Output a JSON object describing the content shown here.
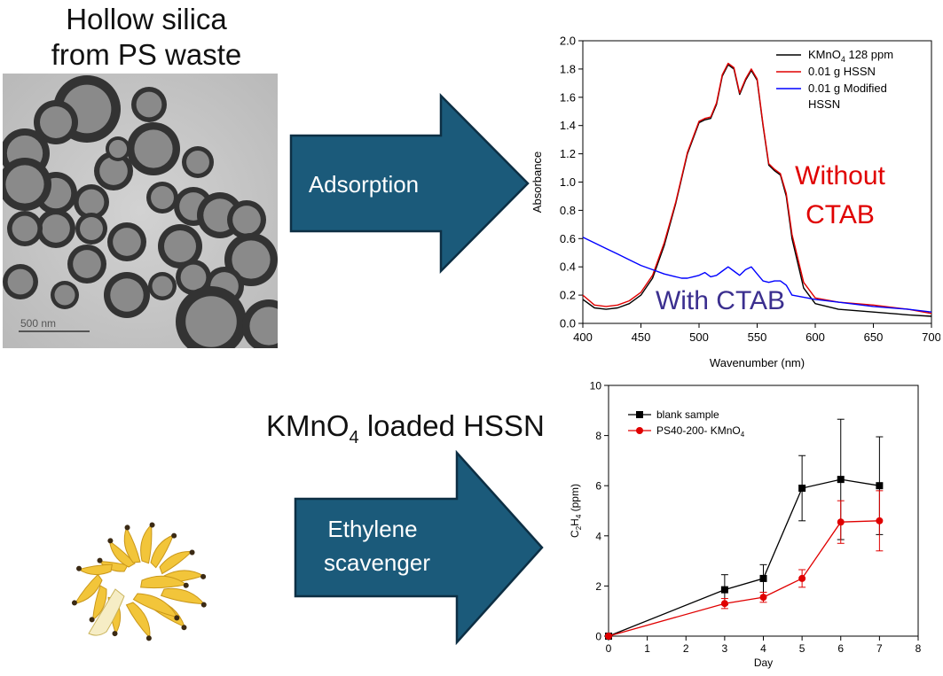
{
  "top_title": {
    "line1": "Hollow silica",
    "line2": "from PS waste"
  },
  "tem_image": {
    "scale_label": "500 nm"
  },
  "arrow_adsorption": {
    "label": "Adsorption",
    "color": "#1b5a7a"
  },
  "arrow_scavenger": {
    "line1": "Ethylene",
    "line2": "scavenger",
    "color": "#1b5a7a"
  },
  "kmno4_title": {
    "main": "KMnO",
    "sub": "4",
    "rest": " loaded HSSN"
  },
  "chart_data": [
    {
      "type": "line",
      "xlabel": "Wavenumber (nm)",
      "ylabel": "Absorbance",
      "xlim": [
        400,
        700
      ],
      "ylim": [
        0.0,
        2.0
      ],
      "xticks": [
        400,
        450,
        500,
        550,
        600,
        650,
        700
      ],
      "yticks": [
        0.0,
        0.2,
        0.4,
        0.6,
        0.8,
        1.0,
        1.2,
        1.4,
        1.6,
        1.8,
        2.0
      ],
      "legend": [
        {
          "text": "KMnO",
          "sub": "4",
          "after": " 128 ppm",
          "color": "#000000"
        },
        {
          "text": "0.01 g HSSN",
          "color": "#e00000"
        },
        {
          "text": "0.01 g Modified",
          "text2": "HSSN",
          "color": "#0000ff"
        }
      ],
      "annotations": [
        {
          "text1": "Without",
          "text2": "CTAB",
          "color": "#e00000"
        },
        {
          "text1": "With CTAB",
          "color": "#3b2f8f"
        }
      ],
      "series": [
        {
          "name": "KMnO4 128 ppm",
          "color": "#000000",
          "x": [
            400,
            410,
            420,
            430,
            440,
            450,
            460,
            470,
            480,
            490,
            500,
            505,
            510,
            515,
            520,
            525,
            530,
            535,
            540,
            545,
            550,
            555,
            560,
            565,
            570,
            575,
            580,
            590,
            600,
            620,
            650,
            680,
            700
          ],
          "y": [
            0.17,
            0.11,
            0.1,
            0.11,
            0.14,
            0.2,
            0.32,
            0.55,
            0.85,
            1.2,
            1.42,
            1.44,
            1.45,
            1.55,
            1.75,
            1.83,
            1.8,
            1.62,
            1.72,
            1.79,
            1.72,
            1.4,
            1.12,
            1.08,
            1.05,
            0.9,
            0.6,
            0.25,
            0.14,
            0.1,
            0.08,
            0.06,
            0.05
          ]
        },
        {
          "name": "0.01 g HSSN",
          "color": "#e00000",
          "x": [
            400,
            410,
            420,
            430,
            440,
            450,
            460,
            470,
            480,
            490,
            500,
            505,
            510,
            515,
            520,
            525,
            530,
            535,
            540,
            545,
            550,
            555,
            560,
            565,
            570,
            575,
            580,
            590,
            600,
            620,
            650,
            680,
            700
          ],
          "y": [
            0.2,
            0.13,
            0.12,
            0.13,
            0.16,
            0.22,
            0.34,
            0.57,
            0.86,
            1.21,
            1.43,
            1.45,
            1.46,
            1.56,
            1.76,
            1.84,
            1.81,
            1.63,
            1.73,
            1.8,
            1.73,
            1.41,
            1.13,
            1.09,
            1.06,
            0.92,
            0.63,
            0.29,
            0.18,
            0.15,
            0.13,
            0.1,
            0.07
          ]
        },
        {
          "name": "0.01 g Modified HSSN",
          "color": "#0000ff",
          "x": [
            400,
            410,
            420,
            430,
            440,
            450,
            460,
            470,
            480,
            485,
            490,
            495,
            500,
            505,
            510,
            515,
            520,
            525,
            530,
            535,
            540,
            545,
            550,
            555,
            560,
            565,
            570,
            575,
            580,
            600,
            620,
            650,
            680,
            700
          ],
          "y": [
            0.61,
            0.57,
            0.53,
            0.49,
            0.45,
            0.41,
            0.38,
            0.35,
            0.33,
            0.32,
            0.32,
            0.33,
            0.34,
            0.36,
            0.33,
            0.34,
            0.37,
            0.4,
            0.37,
            0.34,
            0.38,
            0.4,
            0.35,
            0.3,
            0.29,
            0.3,
            0.3,
            0.27,
            0.2,
            0.17,
            0.15,
            0.12,
            0.1,
            0.08
          ]
        }
      ]
    },
    {
      "type": "line",
      "xlabel": "Day",
      "ylabel": {
        "text": "C",
        "sub1": "2",
        "mid": "H",
        "sub2": "4",
        "after": " (ppm)"
      },
      "xlim": [
        0,
        8
      ],
      "ylim": [
        0,
        10
      ],
      "xticks": [
        0,
        1,
        2,
        3,
        4,
        5,
        6,
        7,
        8
      ],
      "yticks": [
        0,
        2,
        4,
        6,
        8,
        10
      ],
      "legend": [
        {
          "text": "blank sample",
          "color": "#000000"
        },
        {
          "text": "PS40-200- KMnO",
          "sub": "4",
          "color": "#e00000"
        }
      ],
      "series": [
        {
          "name": "blank sample",
          "color": "#000000",
          "marker": "square",
          "x": [
            0,
            3,
            4,
            5,
            6,
            7
          ],
          "y": [
            0,
            1.85,
            2.3,
            5.9,
            6.25,
            6.0
          ],
          "err": [
            0,
            0.6,
            0.55,
            1.3,
            2.4,
            1.95
          ]
        },
        {
          "name": "PS40-200- KMnO4",
          "color": "#e00000",
          "marker": "circle",
          "x": [
            0,
            3,
            4,
            5,
            6,
            7
          ],
          "y": [
            0,
            1.3,
            1.55,
            2.3,
            4.55,
            4.6
          ],
          "err": [
            0,
            0.2,
            0.2,
            0.35,
            0.85,
            1.2
          ]
        }
      ]
    }
  ]
}
